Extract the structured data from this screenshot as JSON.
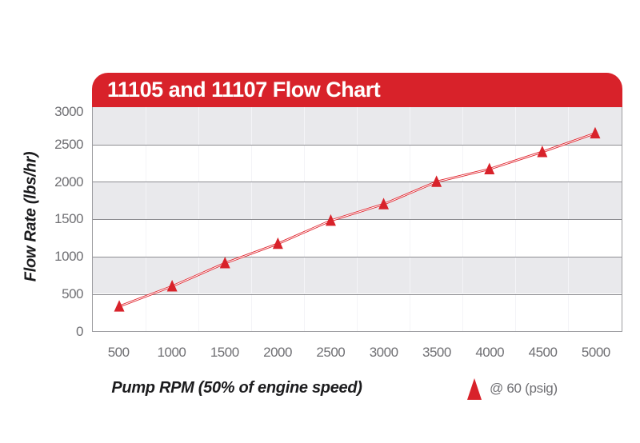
{
  "chart_data": {
    "type": "line",
    "title": "11105 and 11107 Flow Chart",
    "xlabel": "Pump RPM (50% of engine speed)",
    "ylabel": "Flow Rate (lbs/hr)",
    "x": [
      500,
      1000,
      1500,
      2000,
      2500,
      3000,
      3500,
      4000,
      4500,
      5000
    ],
    "xtick_labels": [
      "500",
      "1000",
      "1500",
      "2000",
      "2500",
      "3000",
      "3500",
      "4000",
      "4500",
      "5000"
    ],
    "ytick_labels": [
      "3000",
      "2500",
      "2000",
      "1500",
      "1000",
      "500",
      "0"
    ],
    "ylim": [
      0,
      3000
    ],
    "xlim_categories": true,
    "series": [
      {
        "name": "@ 60 (psig)",
        "marker": "triangle-up",
        "color": "#d8222a",
        "values": [
          330,
          600,
          910,
          1170,
          1480,
          1700,
          2000,
          2170,
          2400,
          2650
        ]
      }
    ],
    "legend": {
      "position": "bottom-right",
      "entries": [
        {
          "label": "@ 60 (psig)",
          "marker": "red-triangle"
        }
      ]
    },
    "grid": {
      "horizontal_step": 500,
      "style": "alternating horizontal bands gray/white with gridlines every 500",
      "vertical_lines": "light lines at category boundaries"
    },
    "colors": {
      "accent_red": "#d8222a",
      "line_red": "#e02730",
      "band_gray": "#e9e9ec",
      "gridline": "#8e8e92",
      "plot_border": "#9b9b9f",
      "tick_text": "#6f6f73",
      "axis_title_text": "#1b1b1d",
      "title_text": "#ffffff",
      "background": "#ffffff"
    }
  }
}
